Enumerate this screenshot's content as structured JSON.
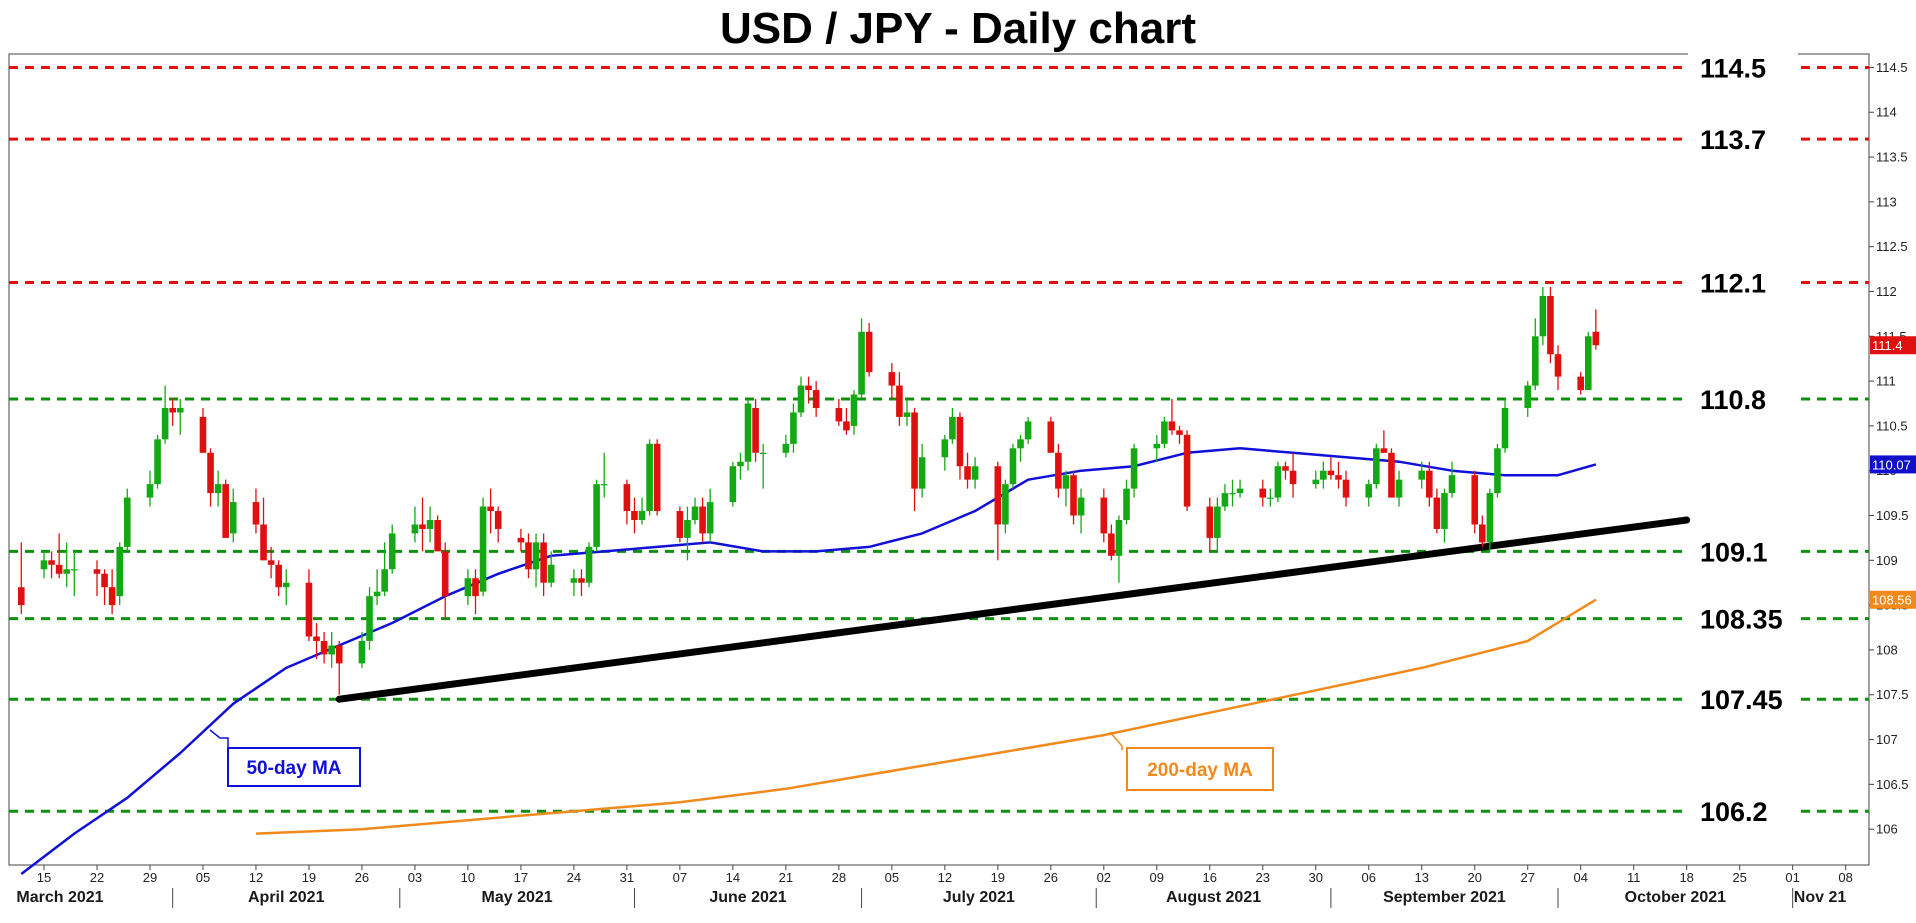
{
  "chart_data": {
    "type": "candlestick",
    "title": "USD / JPY - Daily chart",
    "ylim": [
      105.6,
      114.65
    ],
    "grid": false,
    "y_ticks": [
      "106",
      "106.5",
      "107",
      "107.5",
      "108",
      "108.5",
      "109",
      "109.5",
      "110",
      "110.5",
      "111",
      "111.5",
      "112",
      "112.5",
      "113",
      "113.5",
      "114",
      "114.5"
    ],
    "x_ticks": [
      "15",
      "22",
      "29",
      "05",
      "12",
      "19",
      "26",
      "03",
      "10",
      "17",
      "24",
      "31",
      "07",
      "14",
      "21",
      "28",
      "05",
      "12",
      "19",
      "26",
      "02",
      "09",
      "16",
      "23",
      "30",
      "06",
      "13",
      "20",
      "27",
      "04",
      "11",
      "18",
      "25",
      "01",
      "08"
    ],
    "months": [
      "March 2021",
      "April 2021",
      "May 2021",
      "June 2021",
      "July 2021",
      "August 2021",
      "September 2021",
      "October 2021",
      "Nov 21"
    ],
    "resistance_levels": [
      {
        "value": 114.5,
        "label": "114.5",
        "color": "#e01010"
      },
      {
        "value": 113.7,
        "label": "113.7",
        "color": "#e01010"
      },
      {
        "value": 112.1,
        "label": "112.1",
        "color": "#e01010"
      }
    ],
    "support_levels": [
      {
        "value": 110.8,
        "label": "110.8",
        "color": "#109010"
      },
      {
        "value": 109.1,
        "label": "109.1",
        "color": "#109010"
      },
      {
        "value": 108.35,
        "label": "108.35",
        "color": "#109010"
      },
      {
        "value": 107.45,
        "label": "107.45",
        "color": "#109010"
      },
      {
        "value": 106.2,
        "label": "106.2",
        "color": "#109010"
      }
    ],
    "trendline": {
      "start": {
        "date": "2021-04-23",
        "value": 107.45
      },
      "end": {
        "date": "2021-10-18",
        "value": 109.45
      },
      "color": "#000000"
    },
    "last_price_tags": [
      {
        "label": "111.4",
        "value": 111.4,
        "color": "#e01010"
      },
      {
        "label": "110.07",
        "value": 110.07,
        "color": "#1010cc"
      },
      {
        "label": "108.56",
        "value": 108.56,
        "color": "#f08a1c"
      }
    ],
    "ma_labels": {
      "ma50": {
        "label": "50-day MA",
        "color": "#1010d8"
      },
      "ma200": {
        "label": "200-day MA",
        "color": "#f08a1c"
      }
    },
    "candle_colors": {
      "up": "#15a815",
      "down": "#e01010"
    },
    "ohlc": [
      [
        "2021-03-12",
        108.7,
        109.2,
        108.4,
        108.5
      ],
      [
        "2021-03-15",
        108.9,
        109.1,
        108.8,
        109.0
      ],
      [
        "2021-03-16",
        109.0,
        109.1,
        108.8,
        108.95
      ],
      [
        "2021-03-17",
        108.95,
        109.3,
        108.8,
        108.85
      ],
      [
        "2021-03-18",
        108.85,
        109.2,
        108.7,
        108.9
      ],
      [
        "2021-03-19",
        108.9,
        109.1,
        108.6,
        108.9
      ],
      [
        "2021-03-22",
        108.9,
        109.0,
        108.6,
        108.85
      ],
      [
        "2021-03-23",
        108.85,
        108.9,
        108.5,
        108.7
      ],
      [
        "2021-03-24",
        108.7,
        108.9,
        108.4,
        108.5
      ],
      [
        "2021-03-25",
        108.6,
        109.2,
        108.5,
        109.15
      ],
      [
        "2021-03-26",
        109.15,
        109.8,
        109.1,
        109.7
      ],
      [
        "2021-03-29",
        109.7,
        110.0,
        109.6,
        109.85
      ],
      [
        "2021-03-30",
        109.85,
        110.4,
        109.8,
        110.35
      ],
      [
        "2021-03-31",
        110.35,
        110.95,
        110.3,
        110.7
      ],
      [
        "2021-04-01",
        110.7,
        110.8,
        110.5,
        110.65
      ],
      [
        "2021-04-02",
        110.65,
        110.8,
        110.4,
        110.7
      ],
      [
        "2021-04-05",
        110.6,
        110.7,
        110.2,
        110.2
      ],
      [
        "2021-04-06",
        110.2,
        110.25,
        109.6,
        109.75
      ],
      [
        "2021-04-07",
        109.75,
        110.0,
        109.6,
        109.85
      ],
      [
        "2021-04-08",
        109.85,
        109.9,
        109.3,
        109.25
      ],
      [
        "2021-04-09",
        109.3,
        109.8,
        109.2,
        109.65
      ],
      [
        "2021-04-12",
        109.65,
        109.8,
        109.3,
        109.4
      ],
      [
        "2021-04-13",
        109.4,
        109.7,
        109.0,
        109.0
      ],
      [
        "2021-04-14",
        109.0,
        109.15,
        108.8,
        108.95
      ],
      [
        "2021-04-15",
        108.95,
        109.0,
        108.6,
        108.7
      ],
      [
        "2021-04-16",
        108.7,
        108.9,
        108.5,
        108.75
      ],
      [
        "2021-04-19",
        108.75,
        108.9,
        108.1,
        108.15
      ],
      [
        "2021-04-20",
        108.15,
        108.3,
        107.9,
        108.1
      ],
      [
        "2021-04-21",
        108.1,
        108.2,
        107.85,
        107.95
      ],
      [
        "2021-04-22",
        107.95,
        108.2,
        107.8,
        108.05
      ],
      [
        "2021-04-23",
        108.05,
        108.1,
        107.5,
        107.85
      ],
      [
        "2021-04-26",
        107.85,
        108.2,
        107.8,
        108.1
      ],
      [
        "2021-04-27",
        108.1,
        108.7,
        108.0,
        108.6
      ],
      [
        "2021-04-28",
        108.6,
        108.9,
        108.5,
        108.65
      ],
      [
        "2021-04-29",
        108.65,
        109.2,
        108.6,
        108.9
      ],
      [
        "2021-04-30",
        108.9,
        109.4,
        108.85,
        109.3
      ],
      [
        "2021-05-03",
        109.3,
        109.6,
        109.2,
        109.4
      ],
      [
        "2021-05-04",
        109.4,
        109.7,
        109.1,
        109.35
      ],
      [
        "2021-05-05",
        109.35,
        109.6,
        109.2,
        109.45
      ],
      [
        "2021-05-06",
        109.45,
        109.5,
        109.1,
        109.1
      ],
      [
        "2021-05-07",
        109.1,
        109.2,
        108.35,
        108.6
      ],
      [
        "2021-05-10",
        108.6,
        108.9,
        108.5,
        108.8
      ],
      [
        "2021-05-11",
        108.8,
        108.9,
        108.4,
        108.6
      ],
      [
        "2021-05-12",
        108.65,
        109.7,
        108.6,
        109.6
      ],
      [
        "2021-05-13",
        109.6,
        109.8,
        109.3,
        109.55
      ],
      [
        "2021-05-14",
        109.55,
        109.6,
        109.2,
        109.35
      ],
      [
        "2021-05-17",
        109.25,
        109.35,
        109.1,
        109.2
      ],
      [
        "2021-05-18",
        109.2,
        109.3,
        108.8,
        108.9
      ],
      [
        "2021-05-19",
        108.9,
        109.3,
        108.7,
        109.2
      ],
      [
        "2021-05-20",
        109.2,
        109.3,
        108.6,
        108.75
      ],
      [
        "2021-05-21",
        108.75,
        109.1,
        108.7,
        108.95
      ],
      [
        "2021-05-24",
        108.75,
        108.9,
        108.6,
        108.8
      ],
      [
        "2021-05-25",
        108.8,
        108.9,
        108.6,
        108.75
      ],
      [
        "2021-05-26",
        108.75,
        109.2,
        108.7,
        109.15
      ],
      [
        "2021-05-27",
        109.15,
        109.9,
        109.1,
        109.85
      ],
      [
        "2021-05-28",
        109.85,
        110.2,
        109.7,
        109.85
      ],
      [
        "2021-05-31",
        109.85,
        109.9,
        109.4,
        109.55
      ],
      [
        "2021-06-01",
        109.55,
        109.7,
        109.3,
        109.45
      ],
      [
        "2021-06-02",
        109.45,
        109.7,
        109.4,
        109.55
      ],
      [
        "2021-06-03",
        109.55,
        110.35,
        109.5,
        110.3
      ],
      [
        "2021-06-04",
        110.3,
        110.35,
        109.5,
        109.55
      ],
      [
        "2021-06-07",
        109.55,
        109.6,
        109.2,
        109.25
      ],
      [
        "2021-06-08",
        109.25,
        109.6,
        109.0,
        109.45
      ],
      [
        "2021-06-09",
        109.45,
        109.7,
        109.4,
        109.6
      ],
      [
        "2021-06-10",
        109.6,
        109.7,
        109.2,
        109.3
      ],
      [
        "2021-06-11",
        109.3,
        109.8,
        109.2,
        109.65
      ],
      [
        "2021-06-14",
        109.65,
        110.1,
        109.6,
        110.05
      ],
      [
        "2021-06-15",
        110.05,
        110.2,
        109.9,
        110.1
      ],
      [
        "2021-06-16",
        110.1,
        110.8,
        110.0,
        110.75
      ],
      [
        "2021-06-17",
        110.7,
        110.8,
        110.1,
        110.2
      ],
      [
        "2021-06-18",
        110.2,
        110.3,
        109.8,
        110.2
      ],
      [
        "2021-06-21",
        110.2,
        110.4,
        110.15,
        110.3
      ],
      [
        "2021-06-22",
        110.3,
        110.75,
        110.2,
        110.65
      ],
      [
        "2021-06-23",
        110.65,
        111.05,
        110.6,
        110.95
      ],
      [
        "2021-06-24",
        110.95,
        111.05,
        110.75,
        110.9
      ],
      [
        "2021-06-25",
        110.9,
        111.0,
        110.6,
        110.7
      ],
      [
        "2021-06-28",
        110.7,
        110.8,
        110.5,
        110.55
      ],
      [
        "2021-06-29",
        110.55,
        110.7,
        110.4,
        110.45
      ],
      [
        "2021-06-30",
        110.5,
        110.9,
        110.4,
        110.85
      ],
      [
        "2021-07-01",
        110.85,
        111.7,
        110.8,
        111.55
      ],
      [
        "2021-07-02",
        111.55,
        111.65,
        111.05,
        111.1
      ],
      [
        "2021-07-05",
        111.1,
        111.2,
        110.8,
        110.95
      ],
      [
        "2021-07-06",
        110.95,
        111.1,
        110.5,
        110.6
      ],
      [
        "2021-07-07",
        110.6,
        110.8,
        110.5,
        110.65
      ],
      [
        "2021-07-08",
        110.65,
        110.7,
        109.55,
        109.8
      ],
      [
        "2021-07-09",
        109.8,
        110.3,
        109.7,
        110.15
      ],
      [
        "2021-07-12",
        110.15,
        110.4,
        110.0,
        110.35
      ],
      [
        "2021-07-13",
        110.35,
        110.7,
        110.3,
        110.6
      ],
      [
        "2021-07-14",
        110.6,
        110.65,
        109.9,
        110.05
      ],
      [
        "2021-07-15",
        110.05,
        110.2,
        109.8,
        109.9
      ],
      [
        "2021-07-16",
        109.9,
        110.15,
        109.8,
        110.05
      ],
      [
        "2021-07-19",
        110.05,
        110.1,
        109.0,
        109.4
      ],
      [
        "2021-07-20",
        109.4,
        109.9,
        109.3,
        109.85
      ],
      [
        "2021-07-21",
        109.85,
        110.3,
        109.8,
        110.25
      ],
      [
        "2021-07-22",
        110.25,
        110.4,
        110.1,
        110.35
      ],
      [
        "2021-07-23",
        110.35,
        110.6,
        110.3,
        110.55
      ],
      [
        "2021-07-26",
        110.55,
        110.6,
        110.2,
        110.2
      ],
      [
        "2021-07-27",
        110.2,
        110.3,
        109.7,
        109.8
      ],
      [
        "2021-07-28",
        109.8,
        110.0,
        109.6,
        109.95
      ],
      [
        "2021-07-29",
        109.95,
        110.0,
        109.4,
        109.5
      ],
      [
        "2021-07-30",
        109.5,
        109.8,
        109.3,
        109.7
      ],
      [
        "2021-08-02",
        109.7,
        109.8,
        109.2,
        109.3
      ],
      [
        "2021-08-03",
        109.3,
        109.4,
        109.0,
        109.05
      ],
      [
        "2021-08-04",
        109.05,
        109.5,
        108.75,
        109.45
      ],
      [
        "2021-08-05",
        109.45,
        109.9,
        109.4,
        109.8
      ],
      [
        "2021-08-06",
        109.8,
        110.3,
        109.7,
        110.25
      ],
      [
        "2021-08-09",
        110.25,
        110.4,
        110.1,
        110.3
      ],
      [
        "2021-08-10",
        110.3,
        110.6,
        110.25,
        110.55
      ],
      [
        "2021-08-11",
        110.55,
        110.8,
        110.4,
        110.45
      ],
      [
        "2021-08-12",
        110.45,
        110.5,
        110.3,
        110.4
      ],
      [
        "2021-08-13",
        110.4,
        110.45,
        109.55,
        109.6
      ],
      [
        "2021-08-16",
        109.6,
        109.7,
        109.1,
        109.25
      ],
      [
        "2021-08-17",
        109.25,
        109.7,
        109.1,
        109.6
      ],
      [
        "2021-08-18",
        109.6,
        109.85,
        109.55,
        109.75
      ],
      [
        "2021-08-19",
        109.75,
        109.9,
        109.6,
        109.75
      ],
      [
        "2021-08-20",
        109.75,
        109.9,
        109.7,
        109.8
      ],
      [
        "2021-08-23",
        109.8,
        109.9,
        109.6,
        109.7
      ],
      [
        "2021-08-24",
        109.7,
        109.8,
        109.6,
        109.7
      ],
      [
        "2021-08-25",
        109.7,
        110.1,
        109.65,
        110.05
      ],
      [
        "2021-08-26",
        110.05,
        110.1,
        109.9,
        110.0
      ],
      [
        "2021-08-27",
        110.0,
        110.2,
        109.7,
        109.85
      ],
      [
        "2021-08-30",
        109.85,
        110.0,
        109.8,
        109.9
      ],
      [
        "2021-08-31",
        109.9,
        110.1,
        109.8,
        110.0
      ],
      [
        "2021-09-01",
        110.0,
        110.15,
        109.9,
        109.95
      ],
      [
        "2021-09-02",
        109.95,
        110.1,
        109.8,
        109.9
      ],
      [
        "2021-09-03",
        109.9,
        110.0,
        109.6,
        109.7
      ],
      [
        "2021-09-06",
        109.7,
        109.9,
        109.6,
        109.85
      ],
      [
        "2021-09-07",
        109.85,
        110.3,
        109.8,
        110.25
      ],
      [
        "2021-09-08",
        110.25,
        110.45,
        110.2,
        110.2
      ],
      [
        "2021-09-09",
        110.2,
        110.25,
        109.7,
        109.7
      ],
      [
        "2021-09-10",
        109.7,
        110.0,
        109.6,
        109.9
      ],
      [
        "2021-09-13",
        109.9,
        110.1,
        109.8,
        110.0
      ],
      [
        "2021-09-14",
        110.0,
        110.1,
        109.6,
        109.7
      ],
      [
        "2021-09-15",
        109.7,
        109.8,
        109.3,
        109.35
      ],
      [
        "2021-09-16",
        109.35,
        109.8,
        109.2,
        109.75
      ],
      [
        "2021-09-17",
        109.75,
        110.1,
        109.7,
        109.95
      ],
      [
        "2021-09-20",
        109.95,
        110.0,
        109.3,
        109.4
      ],
      [
        "2021-09-21",
        109.4,
        109.5,
        109.15,
        109.2
      ],
      [
        "2021-09-22",
        109.2,
        109.8,
        109.1,
        109.75
      ],
      [
        "2021-09-23",
        109.75,
        110.3,
        109.7,
        110.25
      ],
      [
        "2021-09-24",
        110.25,
        110.8,
        110.2,
        110.7
      ],
      [
        "2021-09-27",
        110.7,
        111.0,
        110.6,
        110.95
      ],
      [
        "2021-09-28",
        110.95,
        111.7,
        110.9,
        111.5
      ],
      [
        "2021-09-29",
        111.5,
        112.05,
        111.4,
        111.95
      ],
      [
        "2021-09-30",
        111.95,
        112.05,
        111.2,
        111.3
      ],
      [
        "2021-10-01",
        111.3,
        111.4,
        110.9,
        111.05
      ],
      [
        "2021-10-04",
        111.05,
        111.1,
        110.85,
        110.9
      ],
      [
        "2021-10-05",
        110.9,
        111.55,
        110.9,
        111.5
      ],
      [
        "2021-10-06",
        111.55,
        111.8,
        111.35,
        111.4
      ]
    ],
    "ma50": [
      [
        "2021-03-12",
        105.5
      ],
      [
        "2021-03-19",
        105.95
      ],
      [
        "2021-03-26",
        106.35
      ],
      [
        "2021-04-02",
        106.85
      ],
      [
        "2021-04-09",
        107.4
      ],
      [
        "2021-04-16",
        107.8
      ],
      [
        "2021-04-23",
        108.05
      ],
      [
        "2021-04-30",
        108.3
      ],
      [
        "2021-05-07",
        108.6
      ],
      [
        "2021-05-14",
        108.85
      ],
      [
        "2021-05-21",
        109.05
      ],
      [
        "2021-05-28",
        109.1
      ],
      [
        "2021-06-04",
        109.15
      ],
      [
        "2021-06-11",
        109.2
      ],
      [
        "2021-06-18",
        109.1
      ],
      [
        "2021-06-25",
        109.1
      ],
      [
        "2021-07-02",
        109.15
      ],
      [
        "2021-07-09",
        109.3
      ],
      [
        "2021-07-16",
        109.55
      ],
      [
        "2021-07-23",
        109.9
      ],
      [
        "2021-07-30",
        110.0
      ],
      [
        "2021-08-06",
        110.05
      ],
      [
        "2021-08-13",
        110.2
      ],
      [
        "2021-08-20",
        110.25
      ],
      [
        "2021-08-27",
        110.2
      ],
      [
        "2021-09-03",
        110.15
      ],
      [
        "2021-09-10",
        110.1
      ],
      [
        "2021-09-17",
        110.0
      ],
      [
        "2021-09-24",
        109.95
      ],
      [
        "2021-10-01",
        109.95
      ],
      [
        "2021-10-06",
        110.07
      ]
    ],
    "ma200": [
      [
        "2021-04-12",
        105.95
      ],
      [
        "2021-04-26",
        106.0
      ],
      [
        "2021-05-10",
        106.1
      ],
      [
        "2021-05-24",
        106.2
      ],
      [
        "2021-06-07",
        106.3
      ],
      [
        "2021-06-21",
        106.45
      ],
      [
        "2021-07-05",
        106.65
      ],
      [
        "2021-07-19",
        106.85
      ],
      [
        "2021-08-02",
        107.05
      ],
      [
        "2021-08-16",
        107.3
      ],
      [
        "2021-08-30",
        107.55
      ],
      [
        "2021-09-13",
        107.8
      ],
      [
        "2021-09-27",
        108.1
      ],
      [
        "2021-10-06",
        108.56
      ]
    ]
  }
}
